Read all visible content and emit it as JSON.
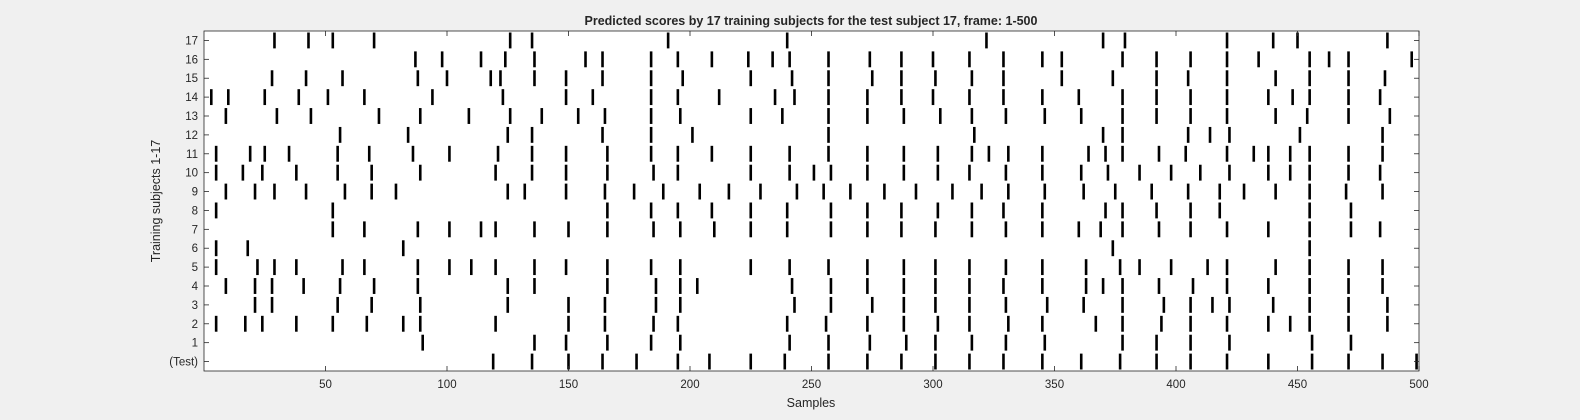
{
  "chart_data": {
    "type": "raster",
    "title": "Predicted scores by 17 training subjects for the test subject 17, frame: 1-500",
    "xlabel": "Samples",
    "ylabel": "Training subjects 1-17",
    "xlim": [
      0,
      500
    ],
    "xticks": [
      50,
      100,
      150,
      200,
      250,
      300,
      350,
      400,
      450,
      500
    ],
    "yticklabels": [
      "(Test)",
      "1",
      "2",
      "3",
      "4",
      "5",
      "6",
      "7",
      "8",
      "9",
      "10",
      "11",
      "12",
      "13",
      "14",
      "15",
      "16",
      "17"
    ],
    "grid": false,
    "legend": "none",
    "mark_color": "#000000",
    "background_color": "#ffffff",
    "rows": [
      {
        "label": "(Test)",
        "x": [
          119,
          135,
          150,
          164,
          178,
          195,
          208,
          225,
          239,
          257,
          273,
          287,
          301,
          315,
          329,
          345,
          361,
          377,
          392,
          406,
          421,
          438,
          456,
          471,
          485,
          499
        ]
      },
      {
        "label": "1",
        "x": [
          90,
          136,
          149,
          166,
          184,
          196,
          241,
          257,
          274,
          289,
          301,
          316,
          330,
          346,
          378,
          392,
          406,
          422,
          456,
          472
        ]
      },
      {
        "label": "2",
        "x": [
          5,
          17,
          24,
          38,
          53,
          67,
          82,
          89,
          120,
          150,
          165,
          185,
          195,
          240,
          256,
          273,
          288,
          302,
          315,
          331,
          345,
          367,
          378,
          394,
          406,
          421,
          438,
          447,
          455,
          471,
          487
        ]
      },
      {
        "label": "3",
        "x": [
          21,
          28,
          55,
          69,
          89,
          125,
          150,
          165,
          186,
          196,
          243,
          258,
          275,
          288,
          301,
          315,
          330,
          347,
          362,
          378,
          395,
          406,
          415,
          422,
          440,
          455,
          471,
          487
        ]
      },
      {
        "label": "4",
        "x": [
          9,
          21,
          28,
          41,
          56,
          70,
          88,
          125,
          136,
          166,
          186,
          196,
          203,
          242,
          258,
          273,
          288,
          301,
          315,
          329,
          345,
          363,
          370,
          378,
          393,
          407,
          421,
          438,
          455,
          471,
          485
        ]
      },
      {
        "label": "5",
        "x": [
          5,
          22,
          29,
          38,
          57,
          66,
          88,
          101,
          110,
          120,
          136,
          149,
          166,
          184,
          196,
          225,
          241,
          257,
          273,
          288,
          301,
          315,
          330,
          345,
          363,
          377,
          385,
          398,
          413,
          421,
          441,
          455,
          471,
          485
        ]
      },
      {
        "label": "6",
        "x": [
          5,
          18,
          82,
          374,
          455
        ]
      },
      {
        "label": "7",
        "x": [
          53,
          66,
          88,
          101,
          114,
          120,
          136,
          150,
          166,
          185,
          196,
          210,
          225,
          240,
          258,
          273,
          287,
          301,
          316,
          330,
          345,
          360,
          369,
          378,
          393,
          406,
          421,
          438,
          455,
          472,
          484
        ]
      },
      {
        "label": "8",
        "x": [
          5,
          53,
          166,
          184,
          195,
          209,
          225,
          240,
          258,
          273,
          287,
          302,
          316,
          329,
          345,
          371,
          378,
          392,
          406,
          418,
          455,
          472
        ]
      },
      {
        "label": "9",
        "x": [
          9,
          21,
          29,
          42,
          58,
          69,
          79,
          125,
          132,
          149,
          165,
          177,
          189,
          204,
          216,
          229,
          244,
          255,
          266,
          280,
          293,
          308,
          320,
          331,
          346,
          362,
          375,
          390,
          405,
          418,
          428,
          441,
          455,
          470,
          485
        ]
      },
      {
        "label": "10",
        "x": [
          5,
          16,
          24,
          38,
          55,
          69,
          89,
          120,
          135,
          149,
          166,
          185,
          195,
          225,
          241,
          251,
          258,
          273,
          288,
          302,
          315,
          330,
          345,
          361,
          372,
          385,
          398,
          410,
          422,
          438,
          447,
          455,
          471,
          484
        ]
      },
      {
        "label": "11",
        "x": [
          5,
          19,
          25,
          35,
          55,
          68,
          86,
          101,
          121,
          135,
          149,
          166,
          184,
          195,
          209,
          225,
          241,
          257,
          273,
          288,
          302,
          316,
          323,
          331,
          345,
          364,
          371,
          378,
          393,
          404,
          421,
          432,
          438,
          447,
          455,
          471,
          485
        ]
      },
      {
        "label": "12",
        "x": [
          56,
          84,
          125,
          135,
          164,
          184,
          201,
          257,
          317,
          370,
          378,
          405,
          414,
          422,
          451,
          485
        ]
      },
      {
        "label": "13",
        "x": [
          9,
          30,
          44,
          72,
          89,
          109,
          126,
          139,
          154,
          165,
          184,
          196,
          225,
          238,
          257,
          273,
          288,
          303,
          316,
          330,
          346,
          361,
          378,
          392,
          406,
          421,
          441,
          454,
          471,
          488
        ]
      },
      {
        "label": "14",
        "x": [
          3,
          10,
          25,
          39,
          51,
          66,
          94,
          123,
          149,
          160,
          184,
          195,
          212,
          235,
          243,
          257,
          273,
          287,
          300,
          315,
          329,
          345,
          360,
          378,
          392,
          406,
          421,
          438,
          448,
          455,
          471,
          484
        ]
      },
      {
        "label": "15",
        "x": [
          28,
          42,
          57,
          88,
          100,
          118,
          122,
          136,
          149,
          164,
          184,
          197,
          225,
          242,
          257,
          275,
          287,
          301,
          316,
          329,
          353,
          374,
          392,
          405,
          421,
          441,
          455,
          471,
          486
        ]
      },
      {
        "label": "16",
        "x": [
          87,
          98,
          114,
          124,
          136,
          157,
          164,
          184,
          195,
          209,
          224,
          234,
          241,
          257,
          274,
          287,
          300,
          315,
          329,
          345,
          353,
          378,
          392,
          406,
          421,
          434,
          455,
          463,
          471,
          497
        ]
      },
      {
        "label": "17",
        "x": [
          29,
          43,
          53,
          70,
          126,
          135,
          191,
          240,
          322,
          370,
          379,
          421,
          440,
          450,
          487
        ]
      }
    ]
  }
}
